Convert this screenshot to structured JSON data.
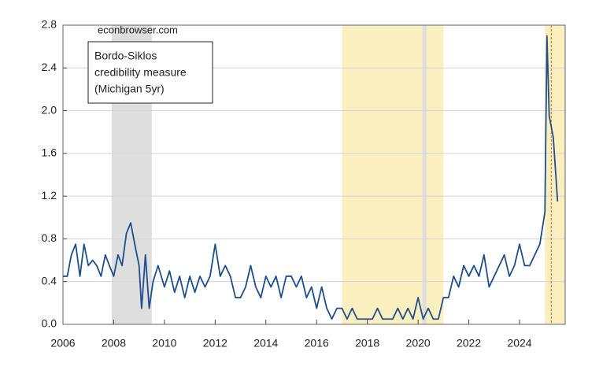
{
  "chart_data": {
    "type": "line",
    "watermark": "econbrowser.com",
    "legend_text": [
      "Bordo-Siklos",
      "credibility measure",
      "(Michigan 5yr)"
    ],
    "xlim": [
      2006,
      2025.8
    ],
    "xticks": [
      2006,
      2008,
      2010,
      2012,
      2014,
      2016,
      2018,
      2020,
      2022,
      2024
    ],
    "ylim": [
      0,
      2.8
    ],
    "yticks": [
      {
        "value": 0,
        "label": "0.0"
      },
      {
        "value": 0.4,
        "label": "0.4"
      },
      {
        "value": 0.8,
        "label": "0.8"
      },
      {
        "value": 1.2,
        "label": "1.2"
      },
      {
        "value": 1.6,
        "label": "1.6"
      },
      {
        "value": 2.0,
        "label": "2.0"
      },
      {
        "value": 2.4,
        "label": "2.4"
      },
      {
        "value": 2.8,
        "label": "2.8"
      }
    ],
    "grid": true,
    "shaded_regions": [
      {
        "start": 2007.92,
        "end": 2009.5,
        "color": "#dedede"
      },
      {
        "start": 2017.0,
        "end": 2021.0,
        "color": "#fcefbf"
      },
      {
        "start": 2020.17,
        "end": 2020.33,
        "color": "#dedede"
      },
      {
        "start": 2025.0,
        "end": 2025.8,
        "color": "#fcefbf"
      }
    ],
    "vline": {
      "x": 2025.25,
      "color": "#e0602a"
    },
    "series": [
      {
        "color": "#1f4e8c",
        "x": [
          2006.0,
          2006.17,
          2006.33,
          2006.5,
          2006.67,
          2006.83,
          2007.0,
          2007.17,
          2007.33,
          2007.5,
          2007.67,
          2007.83,
          2008.0,
          2008.17,
          2008.33,
          2008.5,
          2008.67,
          2008.83,
          2009.0,
          2009.1,
          2009.25,
          2009.4,
          2009.55,
          2009.75,
          2010.0,
          2010.2,
          2010.4,
          2010.6,
          2010.8,
          2011.0,
          2011.2,
          2011.4,
          2011.6,
          2011.8,
          2012.0,
          2012.2,
          2012.4,
          2012.6,
          2012.8,
          2013.0,
          2013.2,
          2013.4,
          2013.6,
          2013.8,
          2014.0,
          2014.2,
          2014.4,
          2014.6,
          2014.8,
          2015.0,
          2015.2,
          2015.4,
          2015.6,
          2015.8,
          2016.0,
          2016.2,
          2016.4,
          2016.6,
          2016.8,
          2017.0,
          2017.2,
          2017.4,
          2017.6,
          2017.8,
          2018.0,
          2018.2,
          2018.4,
          2018.6,
          2018.8,
          2019.0,
          2019.2,
          2019.4,
          2019.6,
          2019.8,
          2020.0,
          2020.2,
          2020.4,
          2020.6,
          2020.8,
          2021.0,
          2021.2,
          2021.4,
          2021.6,
          2021.8,
          2022.0,
          2022.2,
          2022.4,
          2022.6,
          2022.8,
          2023.0,
          2023.2,
          2023.4,
          2023.6,
          2023.8,
          2024.0,
          2024.2,
          2024.4,
          2024.6,
          2024.8,
          2025.0,
          2025.08,
          2025.17,
          2025.33,
          2025.5
        ],
        "values": [
          0.45,
          0.45,
          0.65,
          0.75,
          0.45,
          0.75,
          0.55,
          0.6,
          0.55,
          0.45,
          0.65,
          0.55,
          0.45,
          0.65,
          0.55,
          0.85,
          0.95,
          0.75,
          0.55,
          0.15,
          0.65,
          0.15,
          0.4,
          0.55,
          0.35,
          0.5,
          0.3,
          0.45,
          0.25,
          0.45,
          0.3,
          0.45,
          0.35,
          0.45,
          0.75,
          0.45,
          0.55,
          0.45,
          0.25,
          0.25,
          0.35,
          0.55,
          0.35,
          0.25,
          0.45,
          0.35,
          0.45,
          0.25,
          0.45,
          0.45,
          0.35,
          0.45,
          0.25,
          0.35,
          0.15,
          0.35,
          0.15,
          0.05,
          0.15,
          0.15,
          0.05,
          0.15,
          0.05,
          0.05,
          0.05,
          0.05,
          0.15,
          0.05,
          0.05,
          0.05,
          0.15,
          0.05,
          0.15,
          0.05,
          0.25,
          0.05,
          0.15,
          0.05,
          0.05,
          0.25,
          0.25,
          0.45,
          0.35,
          0.55,
          0.45,
          0.55,
          0.45,
          0.65,
          0.35,
          0.45,
          0.55,
          0.65,
          0.45,
          0.55,
          0.75,
          0.55,
          0.55,
          0.65,
          0.75,
          1.05,
          2.7,
          1.95,
          1.75,
          1.15
        ]
      }
    ]
  }
}
